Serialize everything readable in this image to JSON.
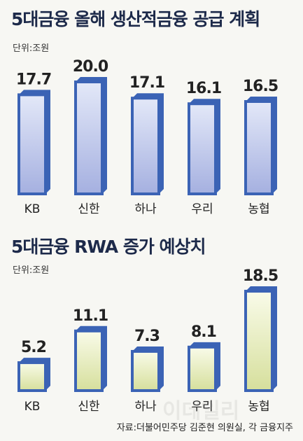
{
  "charts": [
    {
      "title": "5대금융 올해 생산적금융 공급 계획",
      "unit": "단위:조원"
    },
    {
      "title": "5대금융 RWA 증가 예상치",
      "unit": "단위:조원"
    }
  ],
  "source": "자료:더불어민주당 김준현 의원실, 각 금융지주",
  "watermark": "이데일리",
  "colors": {
    "bar_border": "#3b63b5",
    "bar_fill_top_chart1": "#e3e8f8",
    "bar_fill_bottom_chart1": "#a5b0e0",
    "bar_fill_top_chart2": "#f9fbe9",
    "bar_fill_bottom_chart2": "#d6df9c",
    "title": "#1d2a4a"
  },
  "chart_data": [
    {
      "type": "bar",
      "title": "5대금융 올해 생산적금융 공급 계획",
      "ylabel": "단위:조원",
      "categories": [
        "KB",
        "신한",
        "하나",
        "우리",
        "농협"
      ],
      "values": [
        17.7,
        20.0,
        17.1,
        16.1,
        16.5
      ],
      "value_labels": [
        "17.7",
        "20.0",
        "17.1",
        "16.1",
        "16.5"
      ],
      "ylim": [
        0,
        20.0
      ]
    },
    {
      "type": "bar",
      "title": "5대금융 RWA 증가 예상치",
      "ylabel": "단위:조원",
      "categories": [
        "KB",
        "신한",
        "하나",
        "우리",
        "농협"
      ],
      "values": [
        5.2,
        11.1,
        7.3,
        8.1,
        18.5
      ],
      "value_labels": [
        "5.2",
        "11.1",
        "7.3",
        "8.1",
        "18.5"
      ],
      "ylim": [
        0,
        18.5
      ]
    }
  ]
}
